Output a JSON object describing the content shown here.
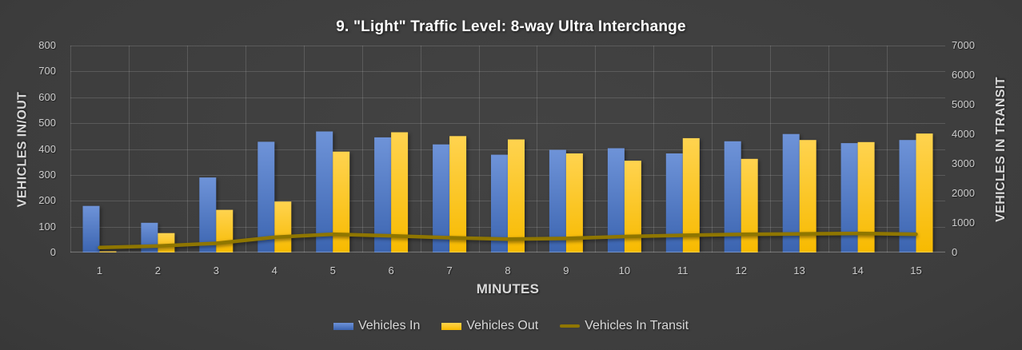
{
  "title": "9. \"Light\" Traffic Level: 8-way Ultra Interchange",
  "axes": {
    "x": {
      "title": "MINUTES"
    },
    "y_left": {
      "title": "VEHICLES IN/OUT"
    },
    "y_right": {
      "title": "VEHICLES IN TRANSIT"
    }
  },
  "legend": [
    {
      "label": "Vehicles In",
      "type": "bar",
      "color": "#4472C4"
    },
    {
      "label": "Vehicles Out",
      "type": "bar",
      "color": "#FFC000"
    },
    {
      "label": "Vehicles In Transit",
      "type": "line",
      "color": "#8F7600"
    }
  ],
  "colors": {
    "vehicles_in": "#4472C4",
    "vehicles_in_light": "#6E93D8",
    "vehicles_in_dark": "#3B64B0",
    "vehicles_out": "#FFC000",
    "vehicles_out_light": "#FFD34F",
    "vehicles_out_dark": "#F7BA00",
    "vehicles_in_transit": "#8F7600",
    "gridline": "rgba(255,255,255,0.14)",
    "axis_line": "rgba(255,255,255,0.28)",
    "tick_text": "#CDCDCD",
    "label_text": "#D9D9D9",
    "title_text": "#FFFFFF",
    "background_center": "#434343",
    "background_edge": "#252525"
  },
  "chart_data": {
    "type": "bar",
    "title": "9. \"Light\" Traffic Level: 8-way Ultra Interchange",
    "xlabel": "MINUTES",
    "ylabel_left": "VEHICLES IN/OUT",
    "ylabel_right": "VEHICLES IN TRANSIT",
    "categories": [
      1,
      2,
      3,
      4,
      5,
      6,
      7,
      8,
      9,
      10,
      11,
      12,
      13,
      14,
      15
    ],
    "ylim_left": [
      0,
      800
    ],
    "ytick_step_left": 100,
    "ylim_right": [
      0,
      7000
    ],
    "ytick_step_right": 1000,
    "grid": true,
    "legend_position": "bottom",
    "series": [
      {
        "name": "Vehicles In",
        "type": "bar",
        "axis": "left",
        "color": "#4472C4",
        "values": [
          180,
          115,
          290,
          428,
          468,
          445,
          418,
          378,
          397,
          403,
          383,
          430,
          458,
          423,
          435
        ]
      },
      {
        "name": "Vehicles Out",
        "type": "bar",
        "axis": "left",
        "color": "#FFC000",
        "values": [
          5,
          75,
          165,
          197,
          390,
          465,
          450,
          437,
          383,
          355,
          442,
          362,
          435,
          427,
          460
        ]
      },
      {
        "name": "Vehicles In Transit",
        "type": "line",
        "axis": "right",
        "color": "#8F7600",
        "values": [
          170,
          220,
          310,
          515,
          620,
          565,
          500,
          455,
          475,
          540,
          580,
          615,
          630,
          645,
          620
        ]
      }
    ]
  }
}
